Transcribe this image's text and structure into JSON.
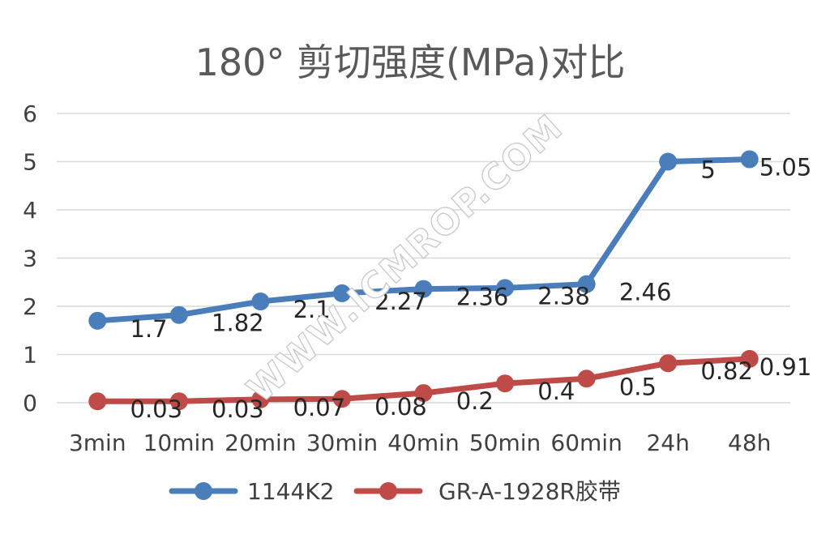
{
  "chart_data": {
    "type": "line",
    "title": "180° 剪切强度(MPa)对比",
    "categories": [
      "3min",
      "10min",
      "20min",
      "30min",
      "40min",
      "50min",
      "60min",
      "24h",
      "48h"
    ],
    "series": [
      {
        "name": "1144K2",
        "color": "#4a7ebb",
        "values": [
          1.7,
          1.82,
          2.1,
          2.27,
          2.36,
          2.38,
          2.46,
          5,
          5.05
        ],
        "labels": [
          "1.7",
          "1.82",
          "2.1",
          "2.27",
          "2.36",
          "2.38",
          "2.46",
          "5",
          "5.05"
        ]
      },
      {
        "name": "GR-A-1928R胶带",
        "color": "#be4b48",
        "values": [
          0.03,
          0.03,
          0.07,
          0.08,
          0.2,
          0.4,
          0.5,
          0.82,
          0.91
        ],
        "labels": [
          "0.03",
          "0.03",
          "0.07",
          "0.08",
          "0.2",
          "0.4",
          "0.5",
          "0.82",
          "0.91"
        ]
      }
    ],
    "yticks": [
      "0",
      "1",
      "2",
      "3",
      "4",
      "5",
      "6"
    ],
    "ylim": [
      0,
      6
    ],
    "grid": true,
    "legend_position": "bottom"
  },
  "watermark": "WWW.ICMROP.COM"
}
